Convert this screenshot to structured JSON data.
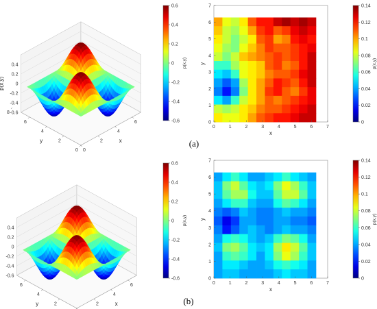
{
  "chart_data": [
    {
      "panel": "a",
      "type": "surface",
      "view": "3d",
      "xlabel": "x",
      "ylabel": "y",
      "zlabel": "p(x,y)",
      "xlim": [
        0,
        7
      ],
      "ylim": [
        0,
        7
      ],
      "zlim": [
        -0.6,
        0.6
      ],
      "xticks": [
        "0",
        "2",
        "4",
        "6"
      ],
      "yticks": [
        "0",
        "2",
        "4",
        "6",
        "8"
      ],
      "zticks": [
        "0.4",
        "0.2",
        "0",
        "-0.2",
        "-0.4",
        "-0.6"
      ],
      "function": "p(x,y) = 0.6*sin(x)*sin(y)",
      "colorbar": {
        "label": "p(x,y)",
        "range": [
          -0.6,
          0.6
        ],
        "ticks": [
          "0.6",
          "0.4",
          "0.2",
          "0",
          "-0.2",
          "-0.4",
          "-0.6"
        ],
        "colormap": "jet"
      }
    },
    {
      "panel": "a",
      "type": "heatmap",
      "xlabel": "x",
      "ylabel": "y",
      "xlim": [
        0,
        7
      ],
      "ylim": [
        0,
        7
      ],
      "xticks": [
        "0",
        "1",
        "2",
        "3",
        "4",
        "5",
        "6",
        "7"
      ],
      "yticks": [
        "0",
        "1",
        "2",
        "3",
        "4",
        "5",
        "6",
        "7"
      ],
      "extent": [
        0,
        6.28
      ],
      "grid": [
        [
          0.1,
          0.085,
          0.08,
          0.09,
          0.11,
          0.12,
          0.12,
          0.13,
          0.135,
          0.13,
          0.135,
          0.13
        ],
        [
          0.095,
          0.08,
          0.075,
          0.085,
          0.1,
          0.115,
          0.12,
          0.11,
          0.115,
          0.125,
          0.13,
          0.125
        ],
        [
          0.09,
          0.08,
          0.07,
          0.08,
          0.09,
          0.11,
          0.115,
          0.1,
          0.105,
          0.12,
          0.125,
          0.12
        ],
        [
          0.085,
          0.075,
          0.07,
          0.085,
          0.095,
          0.105,
          0.115,
          0.11,
          0.11,
          0.115,
          0.12,
          0.125
        ],
        [
          0.08,
          0.07,
          0.08,
          0.095,
          0.1,
          0.105,
          0.11,
          0.115,
          0.11,
          0.115,
          0.12,
          0.13
        ],
        [
          0.06,
          0.06,
          0.075,
          0.085,
          0.09,
          0.095,
          0.11,
          0.115,
          0.105,
          0.11,
          0.12,
          0.13
        ],
        [
          0.05,
          0.045,
          0.06,
          0.085,
          0.09,
          0.095,
          0.105,
          0.11,
          0.11,
          0.115,
          0.125,
          0.13
        ],
        [
          0.04,
          0.03,
          0.04,
          0.075,
          0.09,
          0.1,
          0.11,
          0.12,
          0.115,
          0.11,
          0.12,
          0.13
        ],
        [
          0.035,
          0.02,
          0.035,
          0.07,
          0.09,
          0.1,
          0.115,
          0.12,
          0.11,
          0.105,
          0.115,
          0.125
        ],
        [
          0.05,
          0.04,
          0.06,
          0.08,
          0.09,
          0.1,
          0.11,
          0.105,
          0.11,
          0.115,
          0.12,
          0.125
        ],
        [
          0.08,
          0.075,
          0.08,
          0.09,
          0.095,
          0.105,
          0.11,
          0.11,
          0.115,
          0.12,
          0.125,
          0.13
        ],
        [
          0.09,
          0.085,
          0.085,
          0.09,
          0.1,
          0.11,
          0.115,
          0.12,
          0.12,
          0.125,
          0.13,
          0.13
        ]
      ],
      "colorbar": {
        "label": "p(x,y)",
        "range": [
          0,
          0.14
        ],
        "ticks": [
          "0.14",
          "0.12",
          "0.1",
          "0.08",
          "0.06",
          "0.04",
          "0.02",
          "0"
        ],
        "colormap": "jet"
      }
    },
    {
      "panel": "b",
      "type": "surface",
      "view": "3d",
      "xlabel": "x",
      "ylabel": "y",
      "zlabel": "p(x,y)",
      "xlim": [
        0,
        7
      ],
      "ylim": [
        0,
        7
      ],
      "zlim": [
        -0.6,
        0.6
      ],
      "xticks": [
        "0",
        "2",
        "4",
        "6"
      ],
      "yticks": [
        "0",
        "2",
        "4",
        "6"
      ],
      "zticks": [
        "0.4",
        "0.2",
        "0",
        "-0.2",
        "-0.4",
        "-0.6"
      ],
      "function": "p(x,y) = 0.6*sin(x)*sin(y)",
      "colorbar": {
        "label": "p(x,y)",
        "range": [
          -0.6,
          0.6
        ],
        "ticks": [
          "0.6",
          "0.4",
          "0.2",
          "0",
          "-0.2",
          "-0.4",
          "-0.6"
        ],
        "colormap": "jet"
      }
    },
    {
      "panel": "b",
      "type": "heatmap",
      "xlabel": "x",
      "ylabel": "y",
      "xlim": [
        0,
        7
      ],
      "ylim": [
        0,
        7
      ],
      "xticks": [
        "0",
        "1",
        "2",
        "3",
        "4",
        "5",
        "6",
        "7"
      ],
      "yticks": [
        "0",
        "1",
        "2",
        "3",
        "4",
        "5",
        "6",
        "7"
      ],
      "extent": [
        0,
        6.28
      ],
      "grid": [
        [
          0.04,
          0.05,
          0.06,
          0.05,
          0.04,
          0.04,
          0.045,
          0.05,
          0.06,
          0.05,
          0.045,
          0.04
        ],
        [
          0.045,
          0.07,
          0.08,
          0.065,
          0.05,
          0.045,
          0.05,
          0.07,
          0.085,
          0.075,
          0.06,
          0.045
        ],
        [
          0.045,
          0.065,
          0.075,
          0.075,
          0.055,
          0.045,
          0.045,
          0.065,
          0.08,
          0.08,
          0.065,
          0.045
        ],
        [
          0.04,
          0.05,
          0.06,
          0.06,
          0.045,
          0.04,
          0.04,
          0.055,
          0.065,
          0.06,
          0.05,
          0.04
        ],
        [
          0.035,
          0.03,
          0.035,
          0.045,
          0.04,
          0.035,
          0.035,
          0.04,
          0.045,
          0.04,
          0.04,
          0.035
        ],
        [
          0.03,
          0.015,
          0.025,
          0.04,
          0.04,
          0.035,
          0.035,
          0.04,
          0.04,
          0.035,
          0.035,
          0.03
        ],
        [
          0.035,
          0.02,
          0.03,
          0.04,
          0.045,
          0.04,
          0.035,
          0.04,
          0.045,
          0.04,
          0.04,
          0.035
        ],
        [
          0.04,
          0.055,
          0.06,
          0.055,
          0.045,
          0.04,
          0.045,
          0.06,
          0.07,
          0.065,
          0.055,
          0.04
        ],
        [
          0.045,
          0.07,
          0.075,
          0.065,
          0.05,
          0.045,
          0.05,
          0.075,
          0.09,
          0.08,
          0.065,
          0.045
        ],
        [
          0.04,
          0.06,
          0.065,
          0.06,
          0.05,
          0.04,
          0.05,
          0.07,
          0.085,
          0.075,
          0.06,
          0.045
        ],
        [
          0.04,
          0.05,
          0.05,
          0.045,
          0.04,
          0.04,
          0.045,
          0.055,
          0.06,
          0.055,
          0.05,
          0.04
        ],
        [
          0.04,
          0.045,
          0.045,
          0.04,
          0.04,
          0.04,
          0.04,
          0.045,
          0.05,
          0.045,
          0.045,
          0.04
        ]
      ],
      "colorbar": {
        "label": "p(x,y)",
        "range": [
          0,
          0.14
        ],
        "ticks": [
          "0.14",
          "0.12",
          "0.1",
          "0.08",
          "0.06",
          "0.04",
          "0.02",
          "0"
        ],
        "colormap": "jet"
      }
    }
  ],
  "captions": [
    "(a)",
    "(b)"
  ]
}
